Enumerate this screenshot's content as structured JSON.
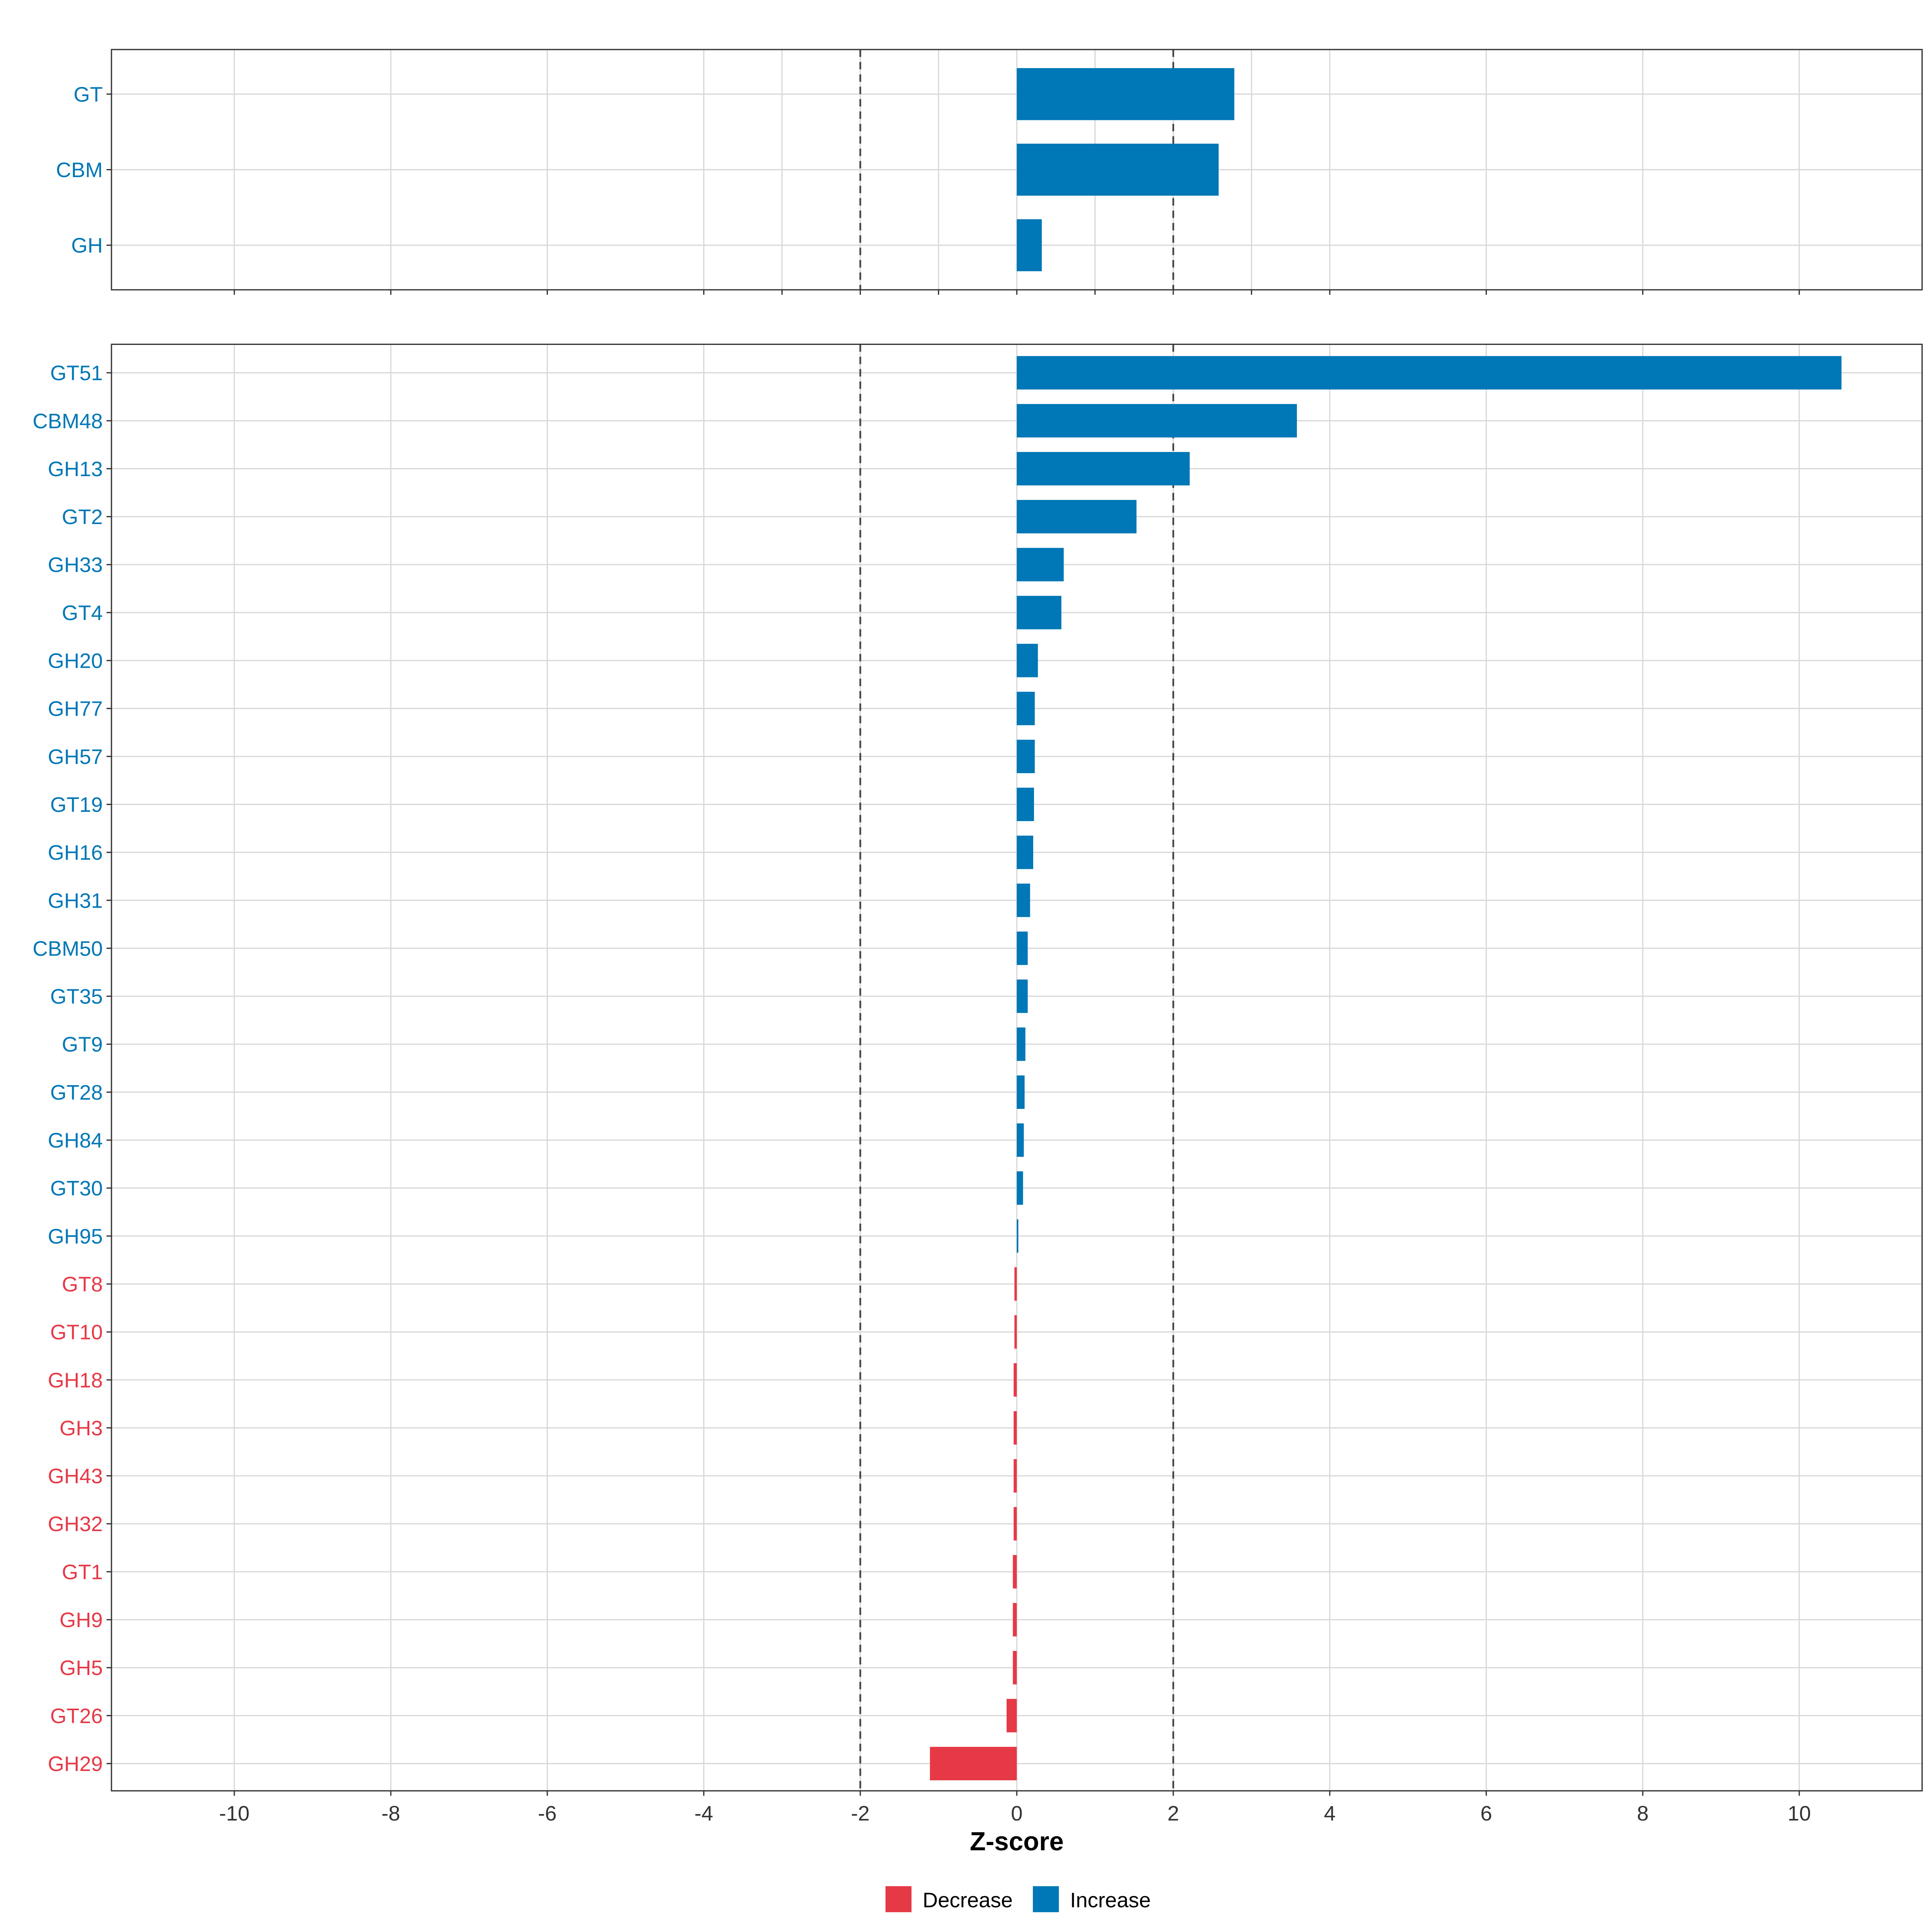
{
  "chart_data": [
    {
      "type": "bar",
      "orientation": "horizontal",
      "panel": "top",
      "categories": [
        "GT",
        "CBM",
        "GH"
      ],
      "values": [
        2.78,
        2.58,
        0.32
      ],
      "xlim": [
        -11.57,
        11.57
      ],
      "extra_gridlines": [
        -3,
        -1,
        1,
        3
      ],
      "reference_lines": [
        -2,
        2
      ]
    },
    {
      "type": "bar",
      "orientation": "horizontal",
      "panel": "bottom",
      "categories": [
        "GT51",
        "CBM48",
        "GH13",
        "GT2",
        "GH33",
        "GT4",
        "GH20",
        "GH77",
        "GH57",
        "GT19",
        "GH16",
        "GH31",
        "CBM50",
        "GT35",
        "GT9",
        "GT28",
        "GH84",
        "GT30",
        "GH95",
        "GT8",
        "GT10",
        "GH18",
        "GH3",
        "GH43",
        "GH32",
        "GT1",
        "GH9",
        "GH5",
        "GT26",
        "GH29"
      ],
      "values": [
        10.54,
        3.58,
        2.21,
        1.53,
        0.6,
        0.57,
        0.27,
        0.23,
        0.23,
        0.22,
        0.21,
        0.17,
        0.14,
        0.14,
        0.11,
        0.1,
        0.09,
        0.08,
        0.02,
        -0.03,
        -0.03,
        -0.04,
        -0.04,
        -0.04,
        -0.04,
        -0.05,
        -0.05,
        -0.05,
        -0.13,
        -1.11
      ],
      "xlim": [
        -11.57,
        11.57
      ],
      "xticks": [
        -10,
        -8,
        -6,
        -4,
        -2,
        0,
        2,
        4,
        6,
        8,
        10
      ],
      "xtick_labels": [
        "-10",
        "-8",
        "-6",
        "-4",
        "-2",
        "0",
        "2",
        "4",
        "6",
        "8",
        "10"
      ],
      "xlabel": "Z-score",
      "reference_lines": [
        -2,
        2
      ],
      "grid": true
    }
  ],
  "legend": {
    "placement": "bottom",
    "items": [
      {
        "label": "Decrease",
        "color": "#E63946"
      },
      {
        "label": "Increase",
        "color": "#0077B6"
      }
    ]
  },
  "colors": {
    "increase": "#0077B6",
    "decrease": "#E63946",
    "grid": "#D9D9D9",
    "refline": "#444444"
  }
}
